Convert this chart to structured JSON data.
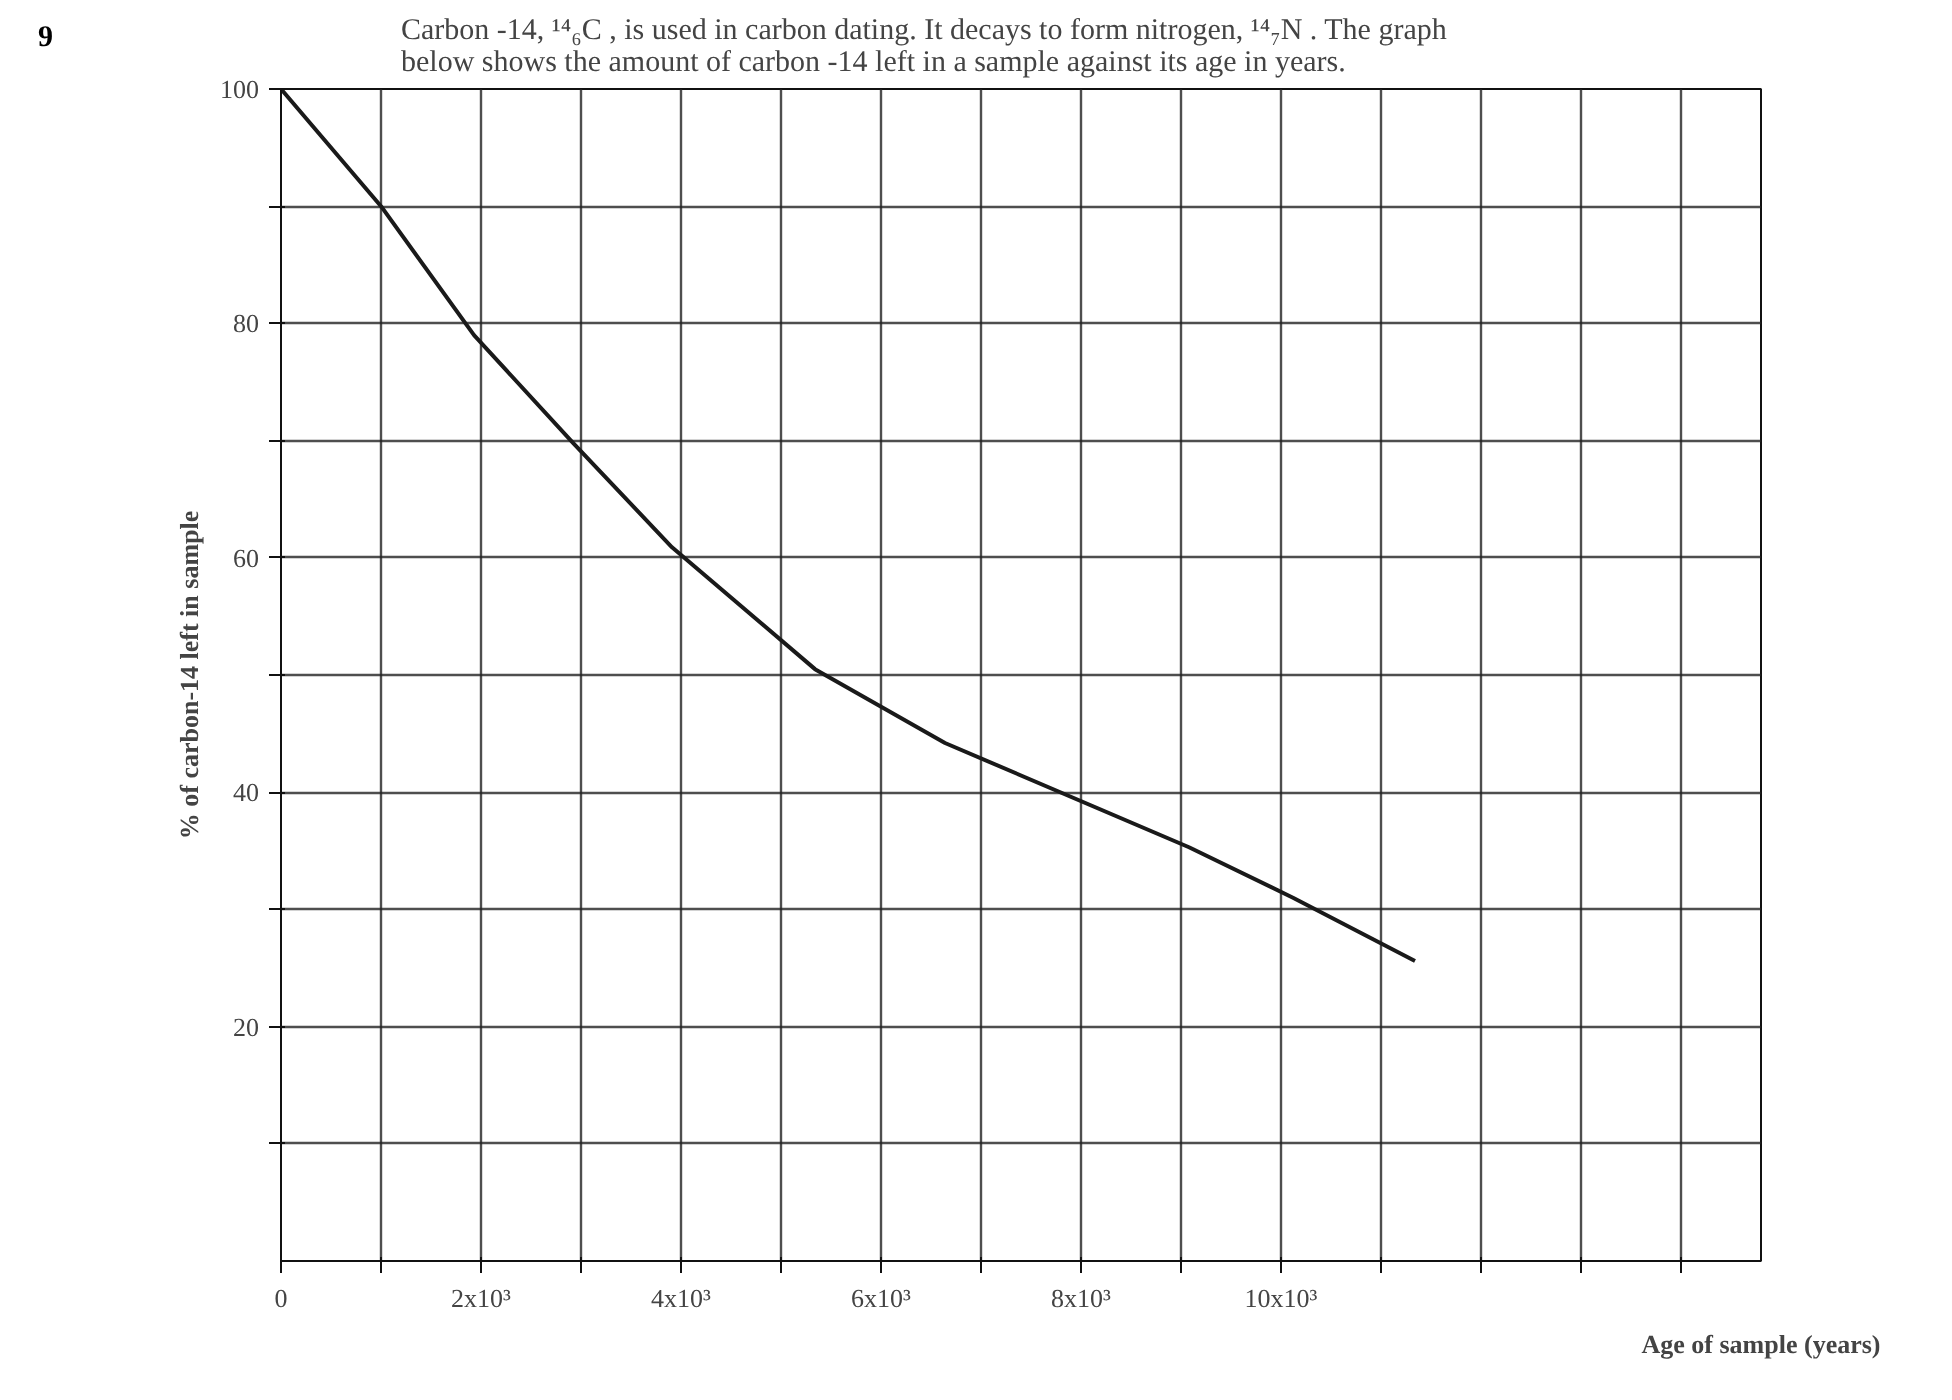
{
  "chart_data": {
    "type": "line",
    "title": "Carbon -14, ¹⁴₆C , is used in carbon dating. It decays to form nitrogen, ¹⁴₇N . The graph below shows the amount of carbon -14 left in a sample against its age in years.",
    "annotations": [
      "9"
    ],
    "xlabel": "Age of sample (years)",
    "ylabel": "% of carbon-14 left in sample",
    "x": [
      0,
      1000,
      1930,
      2920,
      3910,
      5340,
      6640,
      9080,
      10120,
      11340
    ],
    "series": [
      {
        "color": "#1a1a1a",
        "values": [
          100,
          90,
          79,
          69.8,
          60.9,
          50.5,
          44.2,
          35.3,
          31,
          25.6
        ]
      }
    ],
    "xlim": [
      0,
      14800
    ],
    "ylim": [
      0,
      100
    ],
    "xticks": [
      {
        "value": 0,
        "label": "0"
      },
      {
        "value": 1000,
        "label": null
      },
      {
        "value": 2000,
        "label": "2x10³"
      },
      {
        "value": 3000,
        "label": null
      },
      {
        "value": 4000,
        "label": "4x10³"
      },
      {
        "value": 5000,
        "label": null
      },
      {
        "value": 6000,
        "label": "6x10³"
      },
      {
        "value": 7000,
        "label": null
      },
      {
        "value": 8000,
        "label": "8x10³"
      },
      {
        "value": 9000,
        "label": null
      },
      {
        "value": 10000,
        "label": "10x10³"
      },
      {
        "value": 11000,
        "label": null
      },
      {
        "value": 12000,
        "label": null
      },
      {
        "value": 13000,
        "label": null
      },
      {
        "value": 14000,
        "label": null
      }
    ],
    "yticks": [
      {
        "value": 10,
        "label": null
      },
      20,
      {
        "value": 30,
        "label": null
      },
      40,
      {
        "value": 50,
        "label": null
      },
      60,
      {
        "value": 70,
        "label": null
      },
      80,
      {
        "value": 90,
        "label": null
      },
      100
    ],
    "grid": true,
    "marker": "none",
    "line_style": "solid"
  }
}
